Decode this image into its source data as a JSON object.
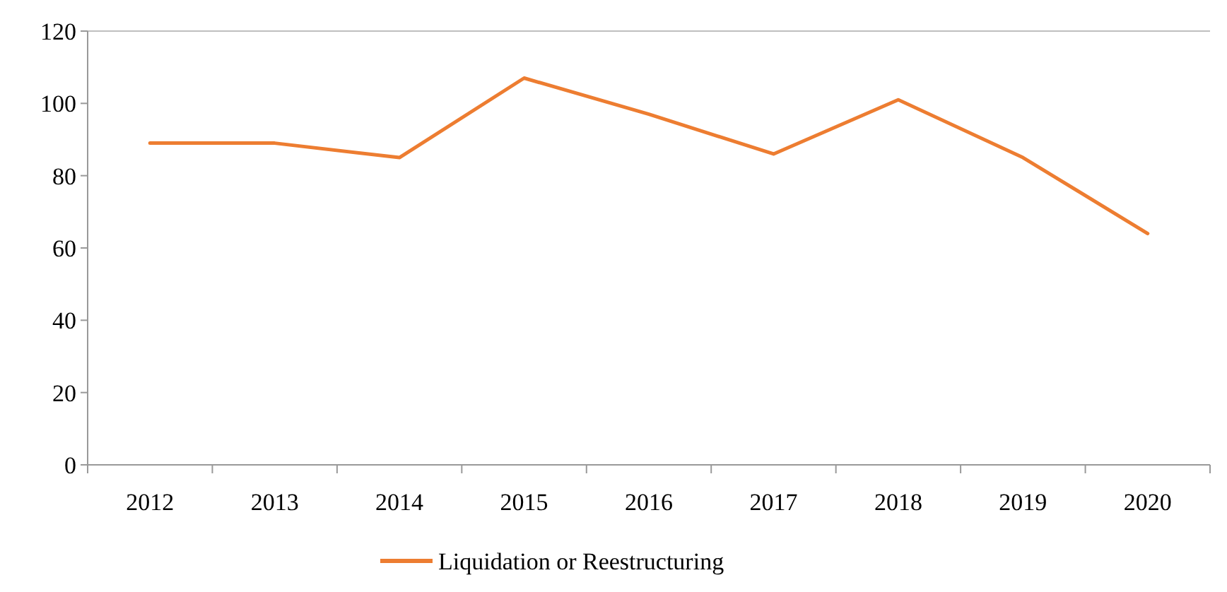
{
  "chart_data": {
    "type": "line",
    "categories": [
      "2012",
      "2013",
      "2014",
      "2015",
      "2016",
      "2017",
      "2018",
      "2019",
      "2020"
    ],
    "series": [
      {
        "name": "Liquidation or Reestructuring",
        "color": "#ed7d31",
        "values": [
          89,
          89,
          85,
          107,
          97,
          86,
          101,
          85,
          64
        ]
      }
    ],
    "ylim": [
      0,
      120
    ],
    "yticks": [
      0,
      20,
      40,
      60,
      80,
      100,
      120
    ],
    "grid": false,
    "legend": "bottom",
    "marker": "none",
    "line_style": "solid"
  }
}
